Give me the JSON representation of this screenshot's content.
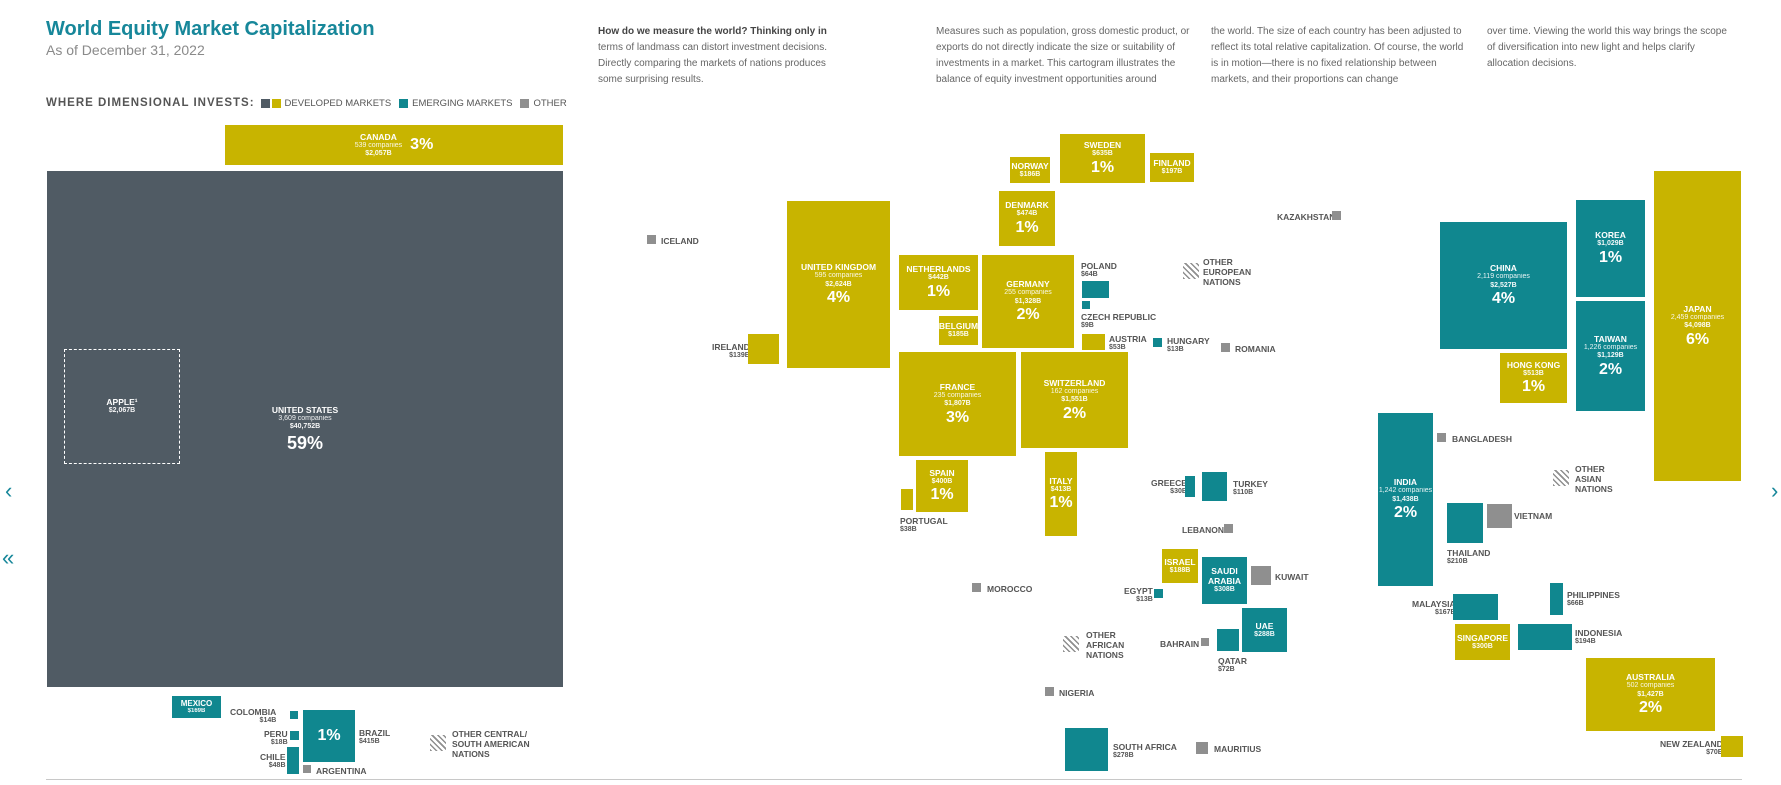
{
  "header": {
    "title": "World Equity Market Capitalization",
    "subtitle": "As of December 31, 2022"
  },
  "legend": {
    "heading": "WHERE DIMENSIONAL INVESTS:",
    "developed": "DEVELOPED MARKETS",
    "emerging": "EMERGING MARKETS",
    "other": "OTHER"
  },
  "colors": {
    "developed": "#c8b400",
    "emerging": "#10878f",
    "other": "#8f8f8f",
    "united_states": "#505b64",
    "title_accent": "#17879a"
  },
  "intro": {
    "col1_bold": "How do we measure the world? Thinking only in",
    "col1_rest": "terms of landmass can distort investment decisions. Directly comparing the markets of nations produces some surprising results.",
    "col2": "Measures such as population, gross domestic product, or exports do not directly indicate the size or suitability of investments in a market. This cartogram illustrates the balance of equity investment opportunities around",
    "col3": "the world. The size of each country has been adjusted to reflect its total relative capitalization. Of course, the world is in motion—there is no fixed relationship between markets, and their proportions can change",
    "col4": "over time. Viewing the world this way brings the scope of diversification into new light and helps clarify allocation decisions."
  },
  "countries": {
    "canada": {
      "name": "CANADA",
      "companies": "539 companies",
      "cap": "$2,057B",
      "pct": "3%"
    },
    "united_states": {
      "name": "UNITED STATES",
      "companies": "3,609 companies",
      "cap": "$40,752B",
      "pct": "59%"
    },
    "apple": {
      "name": "APPLE¹",
      "cap": "$2,067B"
    },
    "mexico": {
      "name": "MEXICO",
      "cap": "$169B"
    },
    "colombia": {
      "name": "COLOMBIA",
      "cap": "$14B"
    },
    "peru": {
      "name": "PERU",
      "cap": "$18B"
    },
    "chile": {
      "name": "CHILE",
      "cap": "$48B"
    },
    "argentina": {
      "name": "ARGENTINA"
    },
    "brazil": {
      "name": "BRAZIL",
      "cap": "$415B",
      "pct": "1%"
    },
    "other_csa": {
      "name": "OTHER CENTRAL/ SOUTH AMERICAN NATIONS"
    },
    "iceland": {
      "name": "ICELAND"
    },
    "ireland": {
      "name": "IRELAND",
      "cap": "$139B"
    },
    "united_kingdom": {
      "name": "UNITED KINGDOM",
      "companies": "595 companies",
      "cap": "$2,624B",
      "pct": "4%"
    },
    "norway": {
      "name": "NORWAY",
      "cap": "$186B"
    },
    "sweden": {
      "name": "SWEDEN",
      "cap": "$635B",
      "pct": "1%"
    },
    "finland": {
      "name": "FINLAND",
      "cap": "$197B"
    },
    "denmark": {
      "name": "DENMARK",
      "cap": "$474B",
      "pct": "1%"
    },
    "netherlands": {
      "name": "NETHERLANDS",
      "cap": "$442B",
      "pct": "1%"
    },
    "germany": {
      "name": "GERMANY",
      "companies": "255 companies",
      "cap": "$1,328B",
      "pct": "2%"
    },
    "belgium": {
      "name": "BELGIUM",
      "cap": "$185B"
    },
    "poland": {
      "name": "POLAND",
      "cap": "$64B"
    },
    "czech_republic": {
      "name": "CZECH REPUBLIC",
      "cap": "$9B"
    },
    "austria": {
      "name": "AUSTRIA",
      "cap": "$53B"
    },
    "hungary": {
      "name": "HUNGARY",
      "cap": "$13B"
    },
    "romania": {
      "name": "ROMANIA"
    },
    "france": {
      "name": "FRANCE",
      "companies": "235 companies",
      "cap": "$1,807B",
      "pct": "3%"
    },
    "switzerland": {
      "name": "SWITZERLAND",
      "companies": "162 companies",
      "cap": "$1,551B",
      "pct": "2%"
    },
    "spain": {
      "name": "SPAIN",
      "cap": "$400B",
      "pct": "1%"
    },
    "portugal": {
      "name": "PORTUGAL",
      "cap": "$38B"
    },
    "italy": {
      "name": "ITALY",
      "cap": "$413B",
      "pct": "1%"
    },
    "other_european": {
      "name": "OTHER EUROPEAN NATIONS"
    },
    "kazakhstan": {
      "name": "KAZAKHSTAN"
    },
    "greece": {
      "name": "GREECE",
      "cap": "$30B"
    },
    "turkey": {
      "name": "TURKEY",
      "cap": "$110B"
    },
    "lebanon": {
      "name": "LEBANON"
    },
    "israel": {
      "name": "ISRAEL",
      "cap": "$188B"
    },
    "saudi_arabia": {
      "name": "SAUDI ARABIA",
      "cap": "$308B"
    },
    "kuwait": {
      "name": "KUWAIT"
    },
    "egypt": {
      "name": "EGYPT",
      "cap": "$13B"
    },
    "uae": {
      "name": "UAE",
      "cap": "$288B"
    },
    "bahrain": {
      "name": "BAHRAIN"
    },
    "qatar": {
      "name": "QATAR",
      "cap": "$72B"
    },
    "morocco": {
      "name": "MOROCCO"
    },
    "other_african": {
      "name": "OTHER AFRICAN NATIONS"
    },
    "nigeria": {
      "name": "NIGERIA"
    },
    "south_africa": {
      "name": "SOUTH AFRICA",
      "cap": "$278B"
    },
    "mauritius": {
      "name": "MAURITIUS"
    },
    "china": {
      "name": "CHINA",
      "companies": "2,119 companies",
      "cap": "$2,527B",
      "pct": "4%"
    },
    "korea": {
      "name": "KOREA",
      "cap": "$1,029B",
      "pct": "1%"
    },
    "taiwan": {
      "name": "TAIWAN",
      "companies": "1,226 companies",
      "cap": "$1,129B",
      "pct": "2%"
    },
    "hong_kong": {
      "name": "HONG KONG",
      "cap": "$513B",
      "pct": "1%"
    },
    "japan": {
      "name": "JAPAN",
      "companies": "2,459 companies",
      "cap": "$4,098B",
      "pct": "6%"
    },
    "bangladesh": {
      "name": "BANGLADESH"
    },
    "india": {
      "name": "INDIA",
      "companies": "1,242 companies",
      "cap": "$1,438B",
      "pct": "2%"
    },
    "other_asian": {
      "name": "OTHER ASIAN NATIONS"
    },
    "thailand": {
      "name": "THAILAND",
      "cap": "$210B"
    },
    "vietnam": {
      "name": "VIETNAM"
    },
    "malaysia": {
      "name": "MALAYSIA",
      "cap": "$167B"
    },
    "philippines": {
      "name": "PHILIPPINES",
      "cap": "$66B"
    },
    "singapore": {
      "name": "SINGAPORE",
      "cap": "$300B"
    },
    "indonesia": {
      "name": "INDONESIA",
      "cap": "$194B"
    },
    "australia": {
      "name": "AUSTRALIA",
      "companies": "502 companies",
      "cap": "$1,427B",
      "pct": "2%"
    },
    "new_zealand": {
      "name": "NEW ZEALAND",
      "cap": "$70B"
    }
  },
  "nav": {
    "next": "›",
    "prev": "‹",
    "first": "«"
  }
}
